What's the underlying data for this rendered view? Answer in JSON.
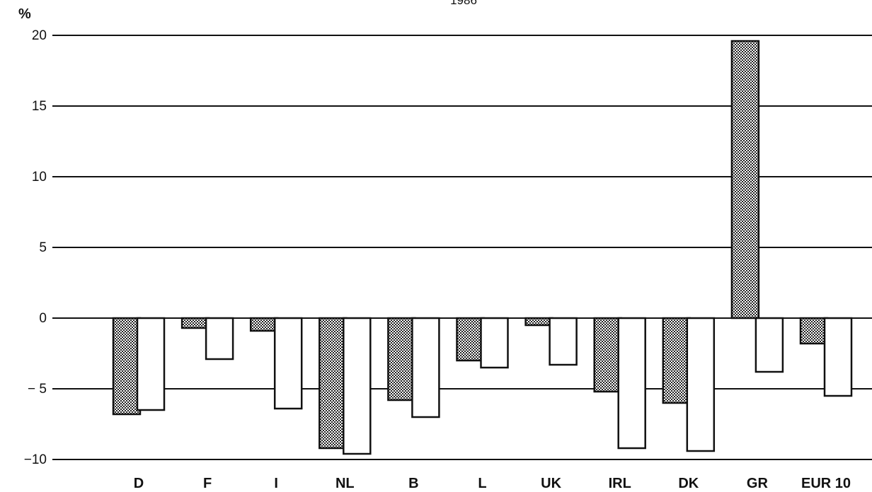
{
  "chart_data": {
    "type": "bar",
    "title": "1986",
    "ylabel": "%",
    "ylim": [
      -10,
      20
    ],
    "yticks": [
      20,
      15,
      10,
      5,
      0,
      -5,
      -10
    ],
    "ytick_labels": [
      "20",
      "15",
      "10",
      "5",
      "0",
      "− 5",
      "−10"
    ],
    "grid": true,
    "categories": [
      "D",
      "F",
      "I",
      "NL",
      "B",
      "L",
      "UK",
      "IRL",
      "DK",
      "GR",
      "EUR 10"
    ],
    "series": [
      {
        "pattern": "dotted",
        "color": "#9a9a9a",
        "values": [
          -6.8,
          -0.7,
          -0.9,
          -9.2,
          -5.8,
          -3.0,
          -0.5,
          -5.2,
          -6.0,
          19.6,
          -1.8
        ]
      },
      {
        "pattern": "plain",
        "color": "#ffffff",
        "values": [
          -6.5,
          -2.9,
          -6.4,
          -9.6,
          -7.0,
          -3.5,
          -3.3,
          -9.2,
          -9.4,
          -3.8,
          -5.5
        ]
      }
    ]
  }
}
